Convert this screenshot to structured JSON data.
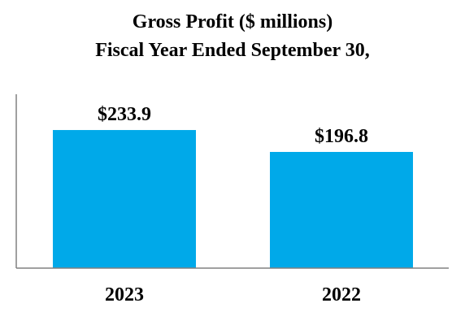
{
  "chart_data": {
    "type": "bar",
    "title": "Gross Profit ($ millions)",
    "subtitle": "Fiscal Year Ended September 30,",
    "categories": [
      "2023",
      "2022"
    ],
    "values": [
      233.9,
      196.8
    ],
    "value_labels": [
      "$233.9",
      "$196.8"
    ],
    "xlabel": "",
    "ylabel": "",
    "ylim": [
      0,
      300
    ],
    "grid": false,
    "legend": "none",
    "bar_color": "#00A9E9",
    "axis_color": "#808080"
  }
}
